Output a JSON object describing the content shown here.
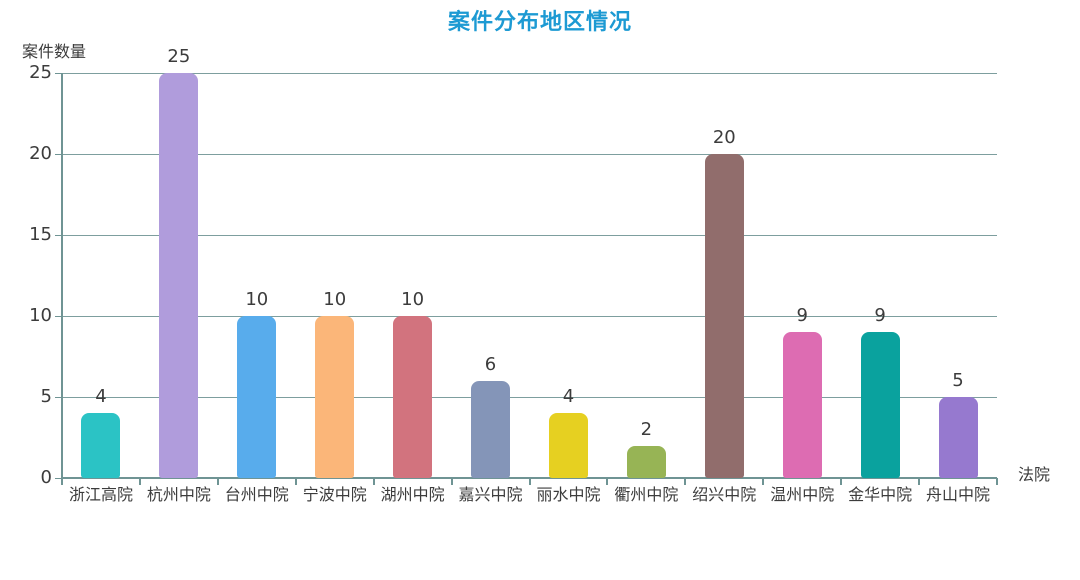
{
  "title": "案件分布地区情况",
  "y_axis_title": "案件数量",
  "x_axis_title": "法院",
  "colors": {
    "title": "#1d9ad3",
    "grid": "#7d9e9e",
    "axis": "#6f9494",
    "text": "#3c3c3c",
    "background": "#ffffff"
  },
  "chart_data": {
    "type": "bar",
    "title": "案件分布地区情况",
    "xlabel": "法院",
    "ylabel": "案件数量",
    "categories": [
      "浙江高院",
      "杭州中院",
      "台州中院",
      "宁波中院",
      "湖州中院",
      "嘉兴中院",
      "丽水中院",
      "衢州中院",
      "绍兴中院",
      "温州中院",
      "金华中院",
      "舟山中院"
    ],
    "values": [
      4,
      25,
      10,
      10,
      10,
      6,
      4,
      2,
      20,
      9,
      9,
      5
    ],
    "bar_colors": [
      "#2bc3c5",
      "#b09cdc",
      "#58acec",
      "#fbb679",
      "#d2737e",
      "#8495b8",
      "#e6d021",
      "#97b455",
      "#916d6c",
      "#dd6cb2",
      "#0aa29e",
      "#9679cf"
    ],
    "yticks": [
      0,
      5,
      10,
      15,
      20,
      25
    ],
    "ylim": [
      0,
      25
    ],
    "grid": true,
    "value_labels": true,
    "legend": false
  }
}
